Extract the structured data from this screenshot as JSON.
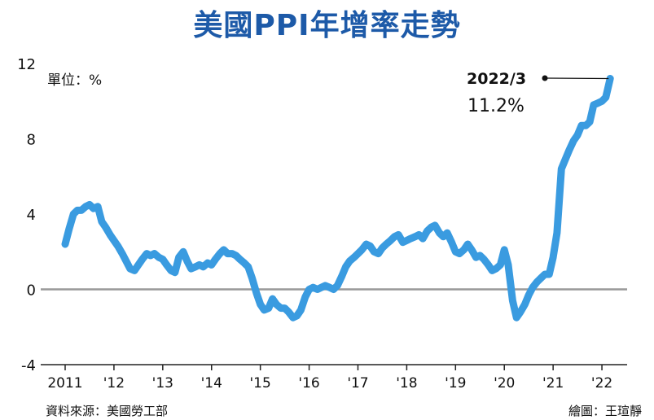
{
  "title": "美國PPI年增率走勢",
  "unit_label": "單位：%",
  "source": "資料來源：美國勞工部",
  "credit": "繪圖：王瑄靜",
  "colors": {
    "title": "#1d5aa8",
    "line": "#3a9be0",
    "zero_line": "#999999"
  },
  "callout": {
    "date": "2022/3",
    "value": "11.2%"
  },
  "chart_data": {
    "type": "line",
    "ylim": [
      -4,
      12
    ],
    "yticks": [
      "12",
      "8",
      "4",
      "0",
      "-4"
    ],
    "ytick_values": [
      12,
      8,
      4,
      0,
      -4
    ],
    "xticks": [
      "2011",
      "'12",
      "'13",
      "'14",
      "'15",
      "'16",
      "'17",
      "'18",
      "'19",
      "'20",
      "'21",
      "'22"
    ],
    "xtick_values": [
      2011,
      2012,
      2013,
      2014,
      2015,
      2016,
      2017,
      2018,
      2019,
      2020,
      2021,
      2022
    ],
    "grid": false,
    "series": [
      {
        "x": [
          2011.0,
          2011.08,
          2011.17,
          2011.25,
          2011.33,
          2011.42,
          2011.5,
          2011.58,
          2011.67,
          2011.75,
          2011.83,
          2011.92,
          2012.0,
          2012.08,
          2012.17,
          2012.25,
          2012.33,
          2012.42,
          2012.5,
          2012.58,
          2012.67,
          2012.75,
          2012.83,
          2012.92,
          2013.0,
          2013.08,
          2013.17,
          2013.25,
          2013.33,
          2013.42,
          2013.5,
          2013.58,
          2013.67,
          2013.75,
          2013.83,
          2013.92,
          2014.0,
          2014.08,
          2014.17,
          2014.25,
          2014.33,
          2014.42,
          2014.5,
          2014.58,
          2014.67,
          2014.75,
          2014.83,
          2014.92,
          2015.0,
          2015.08,
          2015.17,
          2015.25,
          2015.33,
          2015.42,
          2015.5,
          2015.58,
          2015.67,
          2015.75,
          2015.83,
          2015.92,
          2016.0,
          2016.08,
          2016.17,
          2016.25,
          2016.33,
          2016.42,
          2016.5,
          2016.58,
          2016.67,
          2016.75,
          2016.83,
          2016.92,
          2017.0,
          2017.08,
          2017.17,
          2017.25,
          2017.33,
          2017.42,
          2017.5,
          2017.58,
          2017.67,
          2017.75,
          2017.83,
          2017.92,
          2018.0,
          2018.08,
          2018.17,
          2018.25,
          2018.33,
          2018.42,
          2018.5,
          2018.58,
          2018.67,
          2018.75,
          2018.83,
          2018.92,
          2019.0,
          2019.08,
          2019.17,
          2019.25,
          2019.33,
          2019.42,
          2019.5,
          2019.58,
          2019.67,
          2019.75,
          2019.83,
          2019.92,
          2020.0,
          2020.08,
          2020.17,
          2020.25,
          2020.33,
          2020.42,
          2020.5,
          2020.58,
          2020.67,
          2020.75,
          2020.83,
          2020.92,
          2021.0,
          2021.08,
          2021.17,
          2021.25,
          2021.33,
          2021.42,
          2021.5,
          2021.58,
          2021.67,
          2021.75,
          2021.83,
          2021.92,
          2022.0,
          2022.08,
          2022.17
        ],
        "values": [
          2.4,
          3.2,
          4.0,
          4.2,
          4.2,
          4.4,
          4.5,
          4.3,
          4.4,
          3.6,
          3.3,
          2.9,
          2.6,
          2.3,
          1.9,
          1.5,
          1.1,
          1.0,
          1.3,
          1.6,
          1.9,
          1.8,
          1.9,
          1.7,
          1.6,
          1.3,
          1.0,
          0.9,
          1.7,
          2.0,
          1.5,
          1.1,
          1.2,
          1.3,
          1.2,
          1.4,
          1.3,
          1.6,
          1.9,
          2.1,
          1.9,
          1.9,
          1.8,
          1.6,
          1.4,
          1.2,
          0.6,
          -0.2,
          -0.8,
          -1.1,
          -1.0,
          -0.5,
          -0.8,
          -1.0,
          -1.0,
          -1.2,
          -1.5,
          -1.4,
          -1.1,
          -0.4,
          0.0,
          0.1,
          0.0,
          0.1,
          0.2,
          0.1,
          0.0,
          0.2,
          0.7,
          1.2,
          1.5,
          1.7,
          1.9,
          2.1,
          2.4,
          2.3,
          2.0,
          1.9,
          2.2,
          2.4,
          2.6,
          2.8,
          2.9,
          2.5,
          2.6,
          2.7,
          2.8,
          2.9,
          2.7,
          3.1,
          3.3,
          3.4,
          3.0,
          2.8,
          3.0,
          2.5,
          2.0,
          1.9,
          2.1,
          2.4,
          2.1,
          1.7,
          1.8,
          1.6,
          1.3,
          1.0,
          1.1,
          1.3,
          2.1,
          1.3,
          -0.6,
          -1.5,
          -1.2,
          -0.8,
          -0.3,
          0.1,
          0.4,
          0.6,
          0.8,
          0.8,
          1.7,
          3.0,
          6.4,
          6.9,
          7.4,
          7.9,
          8.2,
          8.7,
          8.7,
          8.9,
          9.8,
          9.9,
          10.0,
          10.2,
          11.2
        ]
      }
    ]
  }
}
